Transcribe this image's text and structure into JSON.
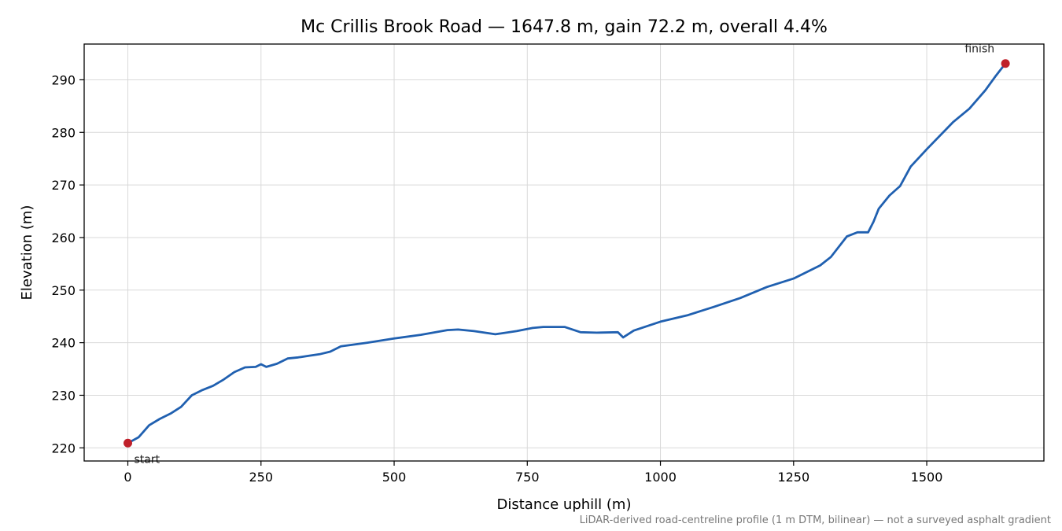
{
  "chart_data": {
    "type": "line",
    "title": "Mc Crillis Brook Road — 1647.8 m, gain 72.2 m, overall 4.4%",
    "xlabel": "Distance uphill (m)",
    "ylabel": "Elevation (m)",
    "xlim": [
      -82,
      1720
    ],
    "ylim": [
      217.5,
      296.8
    ],
    "xticks": [
      0,
      250,
      500,
      750,
      1000,
      1250,
      1500
    ],
    "yticks": [
      220,
      230,
      240,
      250,
      260,
      270,
      280,
      290
    ],
    "grid": true,
    "footnote": "LiDAR-derived road-centreline profile (1 m DTM, bilinear) — not a surveyed asphalt gradient",
    "colors": {
      "line": "#2060b0",
      "marker": "#c0202a",
      "text": "#000000",
      "footnote": "#777777"
    },
    "series": [
      {
        "x": [
          0,
          20,
          40,
          60,
          80,
          100,
          120,
          140,
          160,
          180,
          200,
          220,
          240,
          250,
          260,
          280,
          300,
          320,
          340,
          360,
          380,
          400,
          450,
          500,
          550,
          600,
          620,
          650,
          690,
          730,
          760,
          780,
          820,
          850,
          880,
          920,
          930,
          950,
          1000,
          1050,
          1100,
          1150,
          1200,
          1250,
          1300,
          1320,
          1350,
          1370,
          1390,
          1400,
          1410,
          1430,
          1450,
          1470,
          1500,
          1550,
          1580,
          1610,
          1630,
          1647.8
        ],
        "y": [
          220.9,
          222.0,
          224.3,
          225.5,
          226.5,
          227.8,
          230.0,
          231.0,
          231.8,
          233.0,
          234.4,
          235.3,
          235.4,
          235.9,
          235.4,
          236.0,
          237.0,
          237.2,
          237.5,
          237.8,
          238.3,
          239.3,
          240.0,
          240.8,
          241.5,
          242.4,
          242.5,
          242.2,
          241.6,
          242.2,
          242.8,
          243.0,
          243.0,
          242.0,
          241.9,
          242.0,
          241.0,
          242.3,
          244.0,
          245.2,
          246.8,
          248.5,
          250.6,
          252.2,
          254.7,
          256.3,
          260.2,
          261.0,
          261.0,
          263.0,
          265.5,
          268.0,
          269.8,
          273.5,
          276.8,
          282.0,
          284.5,
          288.0,
          290.8,
          293.1
        ]
      }
    ],
    "annotations": [
      {
        "text": "start",
        "x": 0,
        "y": 220.9
      },
      {
        "text": "finish",
        "x": 1647.8,
        "y": 293.1
      }
    ]
  }
}
